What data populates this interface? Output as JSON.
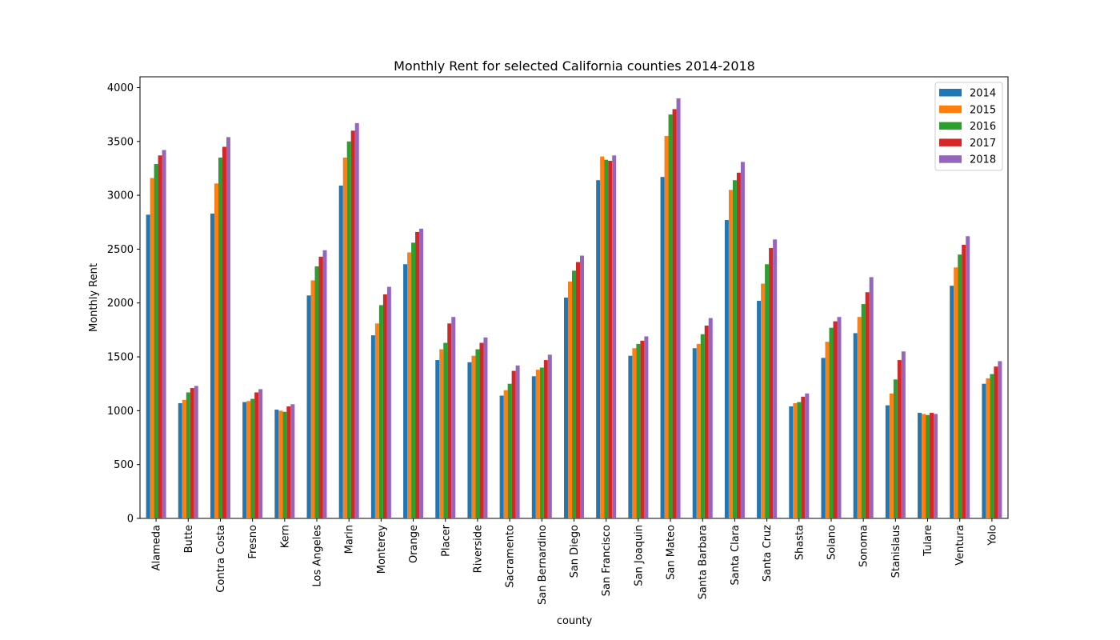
{
  "chart_data": {
    "type": "bar",
    "title": "Monthly Rent for selected California counties 2014-2018",
    "xlabel": "county",
    "ylabel": "Monthly Rent",
    "ylim": [
      0,
      4100
    ],
    "yticks": [
      0,
      500,
      1000,
      1500,
      2000,
      2500,
      3000,
      3500,
      4000
    ],
    "grid": false,
    "legend_position": "top-right",
    "categories": [
      "Alameda",
      "Butte",
      "Contra Costa",
      "Fresno",
      "Kern",
      "Los Angeles",
      "Marin",
      "Monterey",
      "Orange",
      "Placer",
      "Riverside",
      "Sacramento",
      "San Bernardino",
      "San Diego",
      "San Francisco",
      "San Joaquin",
      "San Mateo",
      "Santa Barbara",
      "Santa Clara",
      "Santa Cruz",
      "Shasta",
      "Solano",
      "Sonoma",
      "Stanislaus",
      "Tulare",
      "Ventura",
      "Yolo"
    ],
    "series": [
      {
        "name": "2014",
        "color": "#1f77b4",
        "values": [
          2820,
          1070,
          2830,
          1080,
          1010,
          2070,
          3090,
          1700,
          2360,
          1470,
          1450,
          1140,
          1320,
          2050,
          3140,
          1510,
          3170,
          1580,
          2770,
          2020,
          1040,
          1490,
          1720,
          1050,
          980,
          2160,
          1250
        ]
      },
      {
        "name": "2015",
        "color": "#ff7f0e",
        "values": [
          3160,
          1100,
          3110,
          1090,
          1000,
          2210,
          3350,
          1810,
          2470,
          1570,
          1510,
          1190,
          1380,
          2200,
          3360,
          1580,
          3550,
          1620,
          3050,
          2180,
          1070,
          1640,
          1870,
          1160,
          970,
          2330,
          1300
        ]
      },
      {
        "name": "2016",
        "color": "#2ca02c",
        "values": [
          3290,
          1170,
          3350,
          1110,
          990,
          2340,
          3500,
          1980,
          2560,
          1630,
          1570,
          1250,
          1400,
          2300,
          3330,
          1620,
          3750,
          1710,
          3140,
          2360,
          1080,
          1770,
          1990,
          1290,
          960,
          2450,
          1340
        ]
      },
      {
        "name": "2017",
        "color": "#d62728",
        "values": [
          3370,
          1210,
          3450,
          1170,
          1040,
          2430,
          3600,
          2080,
          2660,
          1810,
          1630,
          1370,
          1470,
          2380,
          3320,
          1650,
          3800,
          1790,
          3210,
          2510,
          1130,
          1830,
          2100,
          1470,
          980,
          2540,
          1410
        ]
      },
      {
        "name": "2018",
        "color": "#9467bd",
        "values": [
          3420,
          1230,
          3540,
          1200,
          1060,
          2490,
          3670,
          2150,
          2690,
          1870,
          1680,
          1420,
          1520,
          2440,
          3370,
          1690,
          3900,
          1860,
          3310,
          2590,
          1160,
          1870,
          2240,
          1550,
          970,
          2620,
          1460
        ]
      }
    ]
  }
}
